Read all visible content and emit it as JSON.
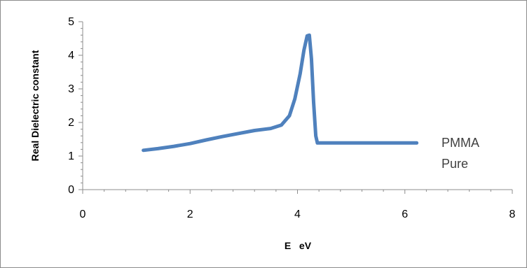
{
  "chart_data": {
    "type": "line",
    "title": "",
    "xlabel": "E   eV",
    "ylabel": "Real Dielectric constant",
    "xlim": [
      0,
      8
    ],
    "ylim": [
      0,
      5
    ],
    "x_ticks": [
      "0",
      "2",
      "4",
      "6",
      "8"
    ],
    "y_ticks": [
      "0",
      "1",
      "2",
      "3",
      "4",
      "5"
    ],
    "grid": false,
    "legend_position": "right",
    "series": [
      {
        "name": "PMMA Pure",
        "color": "#4f81bd",
        "x": [
          1.13,
          1.4,
          1.7,
          2.0,
          2.3,
          2.6,
          2.9,
          3.2,
          3.5,
          3.7,
          3.85,
          3.95,
          4.05,
          4.12,
          4.18,
          4.22,
          4.26,
          4.3,
          4.34,
          4.37,
          4.5,
          5.0,
          5.5,
          6.0,
          6.22
        ],
        "y": [
          1.17,
          1.22,
          1.29,
          1.37,
          1.48,
          1.58,
          1.67,
          1.76,
          1.82,
          1.92,
          2.2,
          2.7,
          3.45,
          4.15,
          4.58,
          4.6,
          3.9,
          2.6,
          1.6,
          1.39,
          1.39,
          1.39,
          1.39,
          1.39,
          1.39
        ]
      }
    ],
    "legend_lines": [
      "PMMA",
      "Pure"
    ]
  }
}
